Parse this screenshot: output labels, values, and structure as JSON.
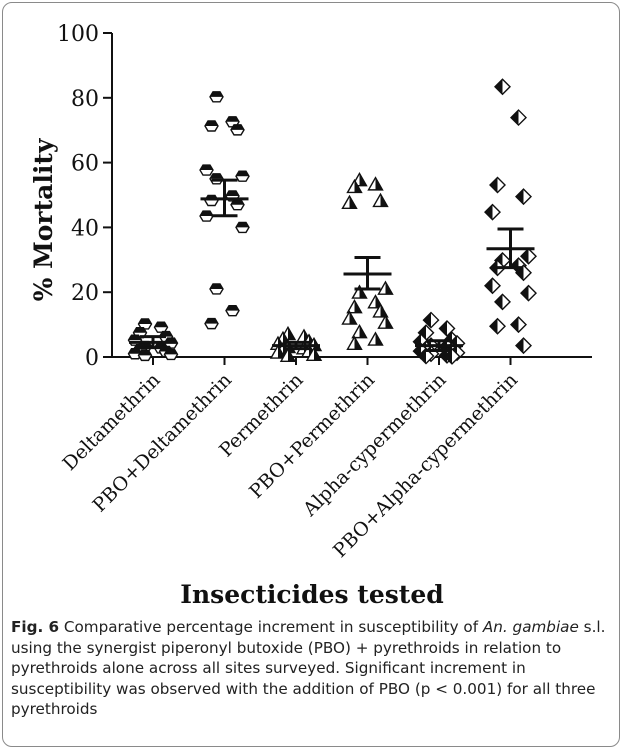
{
  "chart_data": {
    "type": "scatter",
    "ylabel": "% Mortality",
    "xlabel": "Insecticides tested",
    "ylim": [
      0,
      100
    ],
    "yticks": [
      0,
      20,
      40,
      60,
      80,
      100
    ],
    "categories": [
      "Deltamethrin",
      "PBO+Deltamethrin",
      "Permethrin",
      "PBO+Permethrin",
      "Alpha-cypermethrin",
      "PBO+Alpha-cypermethrin"
    ],
    "series": [
      {
        "marker": "hexagon",
        "points": [
          10.2,
          7.5,
          9.2,
          6.3,
          5.2,
          4.3,
          3.2,
          2.8,
          2.3,
          1.7,
          1.0,
          0.8,
          0.5
        ],
        "mean": 4.5,
        "sem_upper": 6.3,
        "sem_lower": 2.9
      },
      {
        "marker": "hexagon",
        "points": [
          80.3,
          71.3,
          72.6,
          70.1,
          57.7,
          55.8,
          55.0,
          49.7,
          48.3,
          47.0,
          43.5,
          40.0,
          21.0,
          14.3,
          10.3
        ],
        "mean": 48.8,
        "sem_upper": 54.6,
        "sem_lower": 43.6
      },
      {
        "marker": "triangle",
        "points": [
          7.0,
          6.2,
          5.5,
          4.7,
          4.0,
          3.6,
          3.0,
          2.6,
          2.2,
          1.7,
          1.3,
          0.6,
          0.3
        ],
        "mean": 3.5,
        "sem_upper": 4.5,
        "sem_lower": 2.6
      },
      {
        "marker": "triangle",
        "points": [
          54.5,
          52.4,
          53.2,
          48.1,
          47.5,
          21.0,
          19.8,
          16.8,
          15.3,
          14.0,
          11.8,
          10.5,
          7.6,
          5.3,
          4.0
        ],
        "mean": 25.6,
        "sem_upper": 30.7,
        "sem_lower": 21.0
      },
      {
        "marker": "diamond",
        "points": [
          11.4,
          8.8,
          7.5,
          5.3,
          4.7,
          4.2,
          3.5,
          3.2,
          2.5,
          2.1,
          1.8,
          1.3,
          1.0,
          0.5,
          0.3,
          0.2
        ],
        "mean": 3.5,
        "sem_upper": 5.0,
        "sem_lower": 2.0
      },
      {
        "marker": "diamond",
        "points": [
          83.4,
          73.9,
          53.1,
          49.5,
          44.7,
          31.1,
          29.8,
          28.2,
          27.5,
          26.0,
          22.0,
          19.7,
          17.0,
          10.0,
          9.5,
          3.5
        ],
        "mean": 33.4,
        "sem_upper": 39.5,
        "sem_lower": 27.6
      }
    ]
  },
  "caption": {
    "label": "Fig. 6",
    "text_before": "  Comparative percentage increment in susceptibility of ",
    "species": "An. gambiae",
    "text_after": " s.l. using the synergist piperonyl butoxide (PBO) + pyrethroids in relation to pyrethroids alone across all sites surveyed. Significant increment in susceptibility was observed with the addition of PBO (p < 0.001) for all three pyrethroids"
  }
}
